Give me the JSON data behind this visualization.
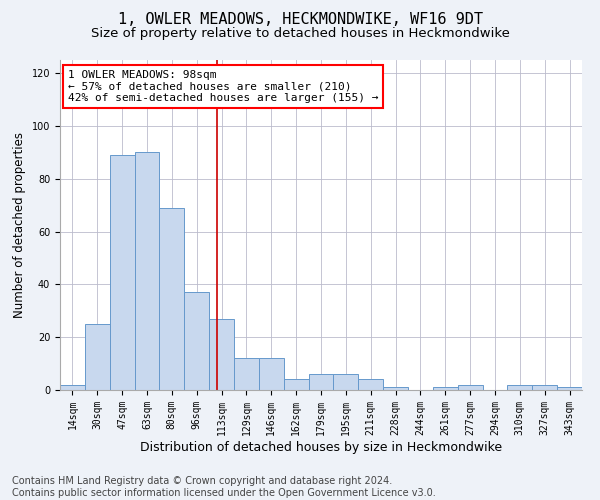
{
  "title": "1, OWLER MEADOWS, HECKMONDWIKE, WF16 9DT",
  "subtitle": "Size of property relative to detached houses in Heckmondwike",
  "xlabel": "Distribution of detached houses by size in Heckmondwike",
  "ylabel": "Number of detached properties",
  "bar_labels": [
    "14sqm",
    "30sqm",
    "47sqm",
    "63sqm",
    "80sqm",
    "96sqm",
    "113sqm",
    "129sqm",
    "146sqm",
    "162sqm",
    "179sqm",
    "195sqm",
    "211sqm",
    "228sqm",
    "244sqm",
    "261sqm",
    "277sqm",
    "294sqm",
    "310sqm",
    "327sqm",
    "343sqm"
  ],
  "bar_values": [
    2,
    25,
    89,
    90,
    69,
    37,
    27,
    12,
    12,
    4,
    6,
    6,
    4,
    1,
    0,
    1,
    2,
    0,
    2,
    2,
    1
  ],
  "bar_color": "#c8d8ee",
  "bar_edge_color": "#6699cc",
  "vline_position": 5.83,
  "vline_color": "#cc0000",
  "annotation_text": "1 OWLER MEADOWS: 98sqm\n← 57% of detached houses are smaller (210)\n42% of semi-detached houses are larger (155) →",
  "ylim": [
    0,
    125
  ],
  "yticks": [
    0,
    20,
    40,
    60,
    80,
    100,
    120
  ],
  "footer_line1": "Contains HM Land Registry data © Crown copyright and database right 2024.",
  "footer_line2": "Contains public sector information licensed under the Open Government Licence v3.0.",
  "bg_color": "#eef2f8",
  "plot_bg_color": "#ffffff",
  "title_fontsize": 11,
  "subtitle_fontsize": 9.5,
  "axis_label_fontsize": 8.5,
  "tick_fontsize": 7,
  "footer_fontsize": 7,
  "annotation_fontsize": 8
}
